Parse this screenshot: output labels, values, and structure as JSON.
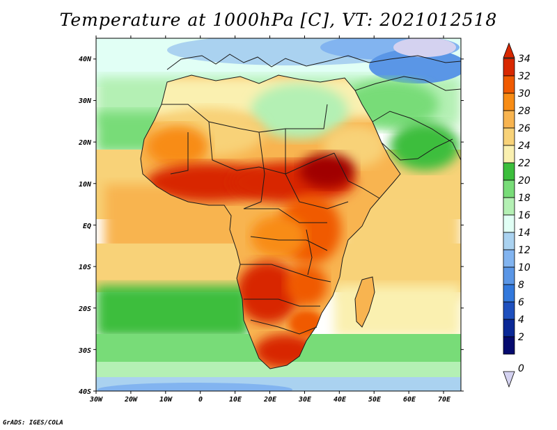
{
  "title": "Temperature at 1000hPa [C], VT: 2021012518",
  "credit": "GrADS: IGES/COLA",
  "map": {
    "lon_range": [
      -30,
      75
    ],
    "lat_range": [
      -40,
      45
    ],
    "lon_ticks": [
      "30W",
      "20W",
      "10W",
      "0",
      "10E",
      "20E",
      "30E",
      "40E",
      "50E",
      "60E",
      "70E"
    ],
    "lat_ticks": [
      "40N",
      "30N",
      "20N",
      "10N",
      "EQ",
      "10S",
      "20S",
      "30S",
      "40S"
    ]
  },
  "colorbar": {
    "labels": [
      "34",
      "32",
      "30",
      "28",
      "26",
      "24",
      "22",
      "20",
      "18",
      "16",
      "14",
      "12",
      "10",
      "8",
      "6",
      "4",
      "2",
      "0"
    ],
    "colors": [
      "#a00000",
      "#d82800",
      "#f05a00",
      "#f88c14",
      "#f8b450",
      "#f8d278",
      "#faf0b0",
      "#3cbe3c",
      "#78dc78",
      "#b4f0b4",
      "#e1fff5",
      "#aad2f0",
      "#82b4f0",
      "#5a96e6",
      "#3278dc",
      "#1e50be",
      "#0a2896",
      "#050a6e"
    ],
    "under_color": "#d4d2f0",
    "over_color": "#d82800"
  }
}
